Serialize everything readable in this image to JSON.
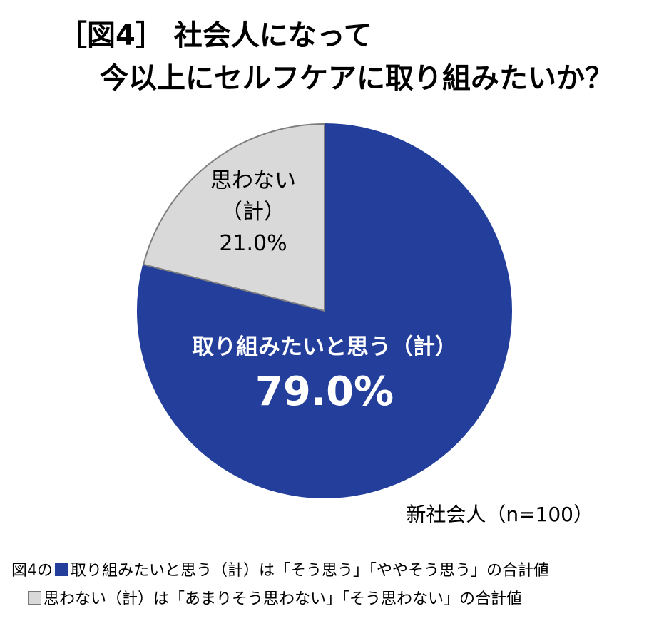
{
  "title_line1": "［図4］ 社会人になって",
  "title_line2": "今以上にセルフケアに取り組みたいか？",
  "chart_data": {
    "type": "pie",
    "slices": [
      {
        "name": "取り組みたいと思う（計）",
        "value": 79.0,
        "value_label": "79.0%",
        "color": "#233f9b"
      },
      {
        "name_lines": [
          "思わない",
          "（計）"
        ],
        "value": 21.0,
        "value_label": "21.0%",
        "color": "#d9d9d9"
      }
    ]
  },
  "sample_note": "新社会人（n=100）",
  "footnotes": {
    "line1_prefix": "図4の",
    "line1_text": "取り組みたいと思う（計）は「そう思う」「ややそう思う」の合計値",
    "line2_text": "思わない（計）は「あまりそう思わない」「そう思わない」の合計値"
  }
}
